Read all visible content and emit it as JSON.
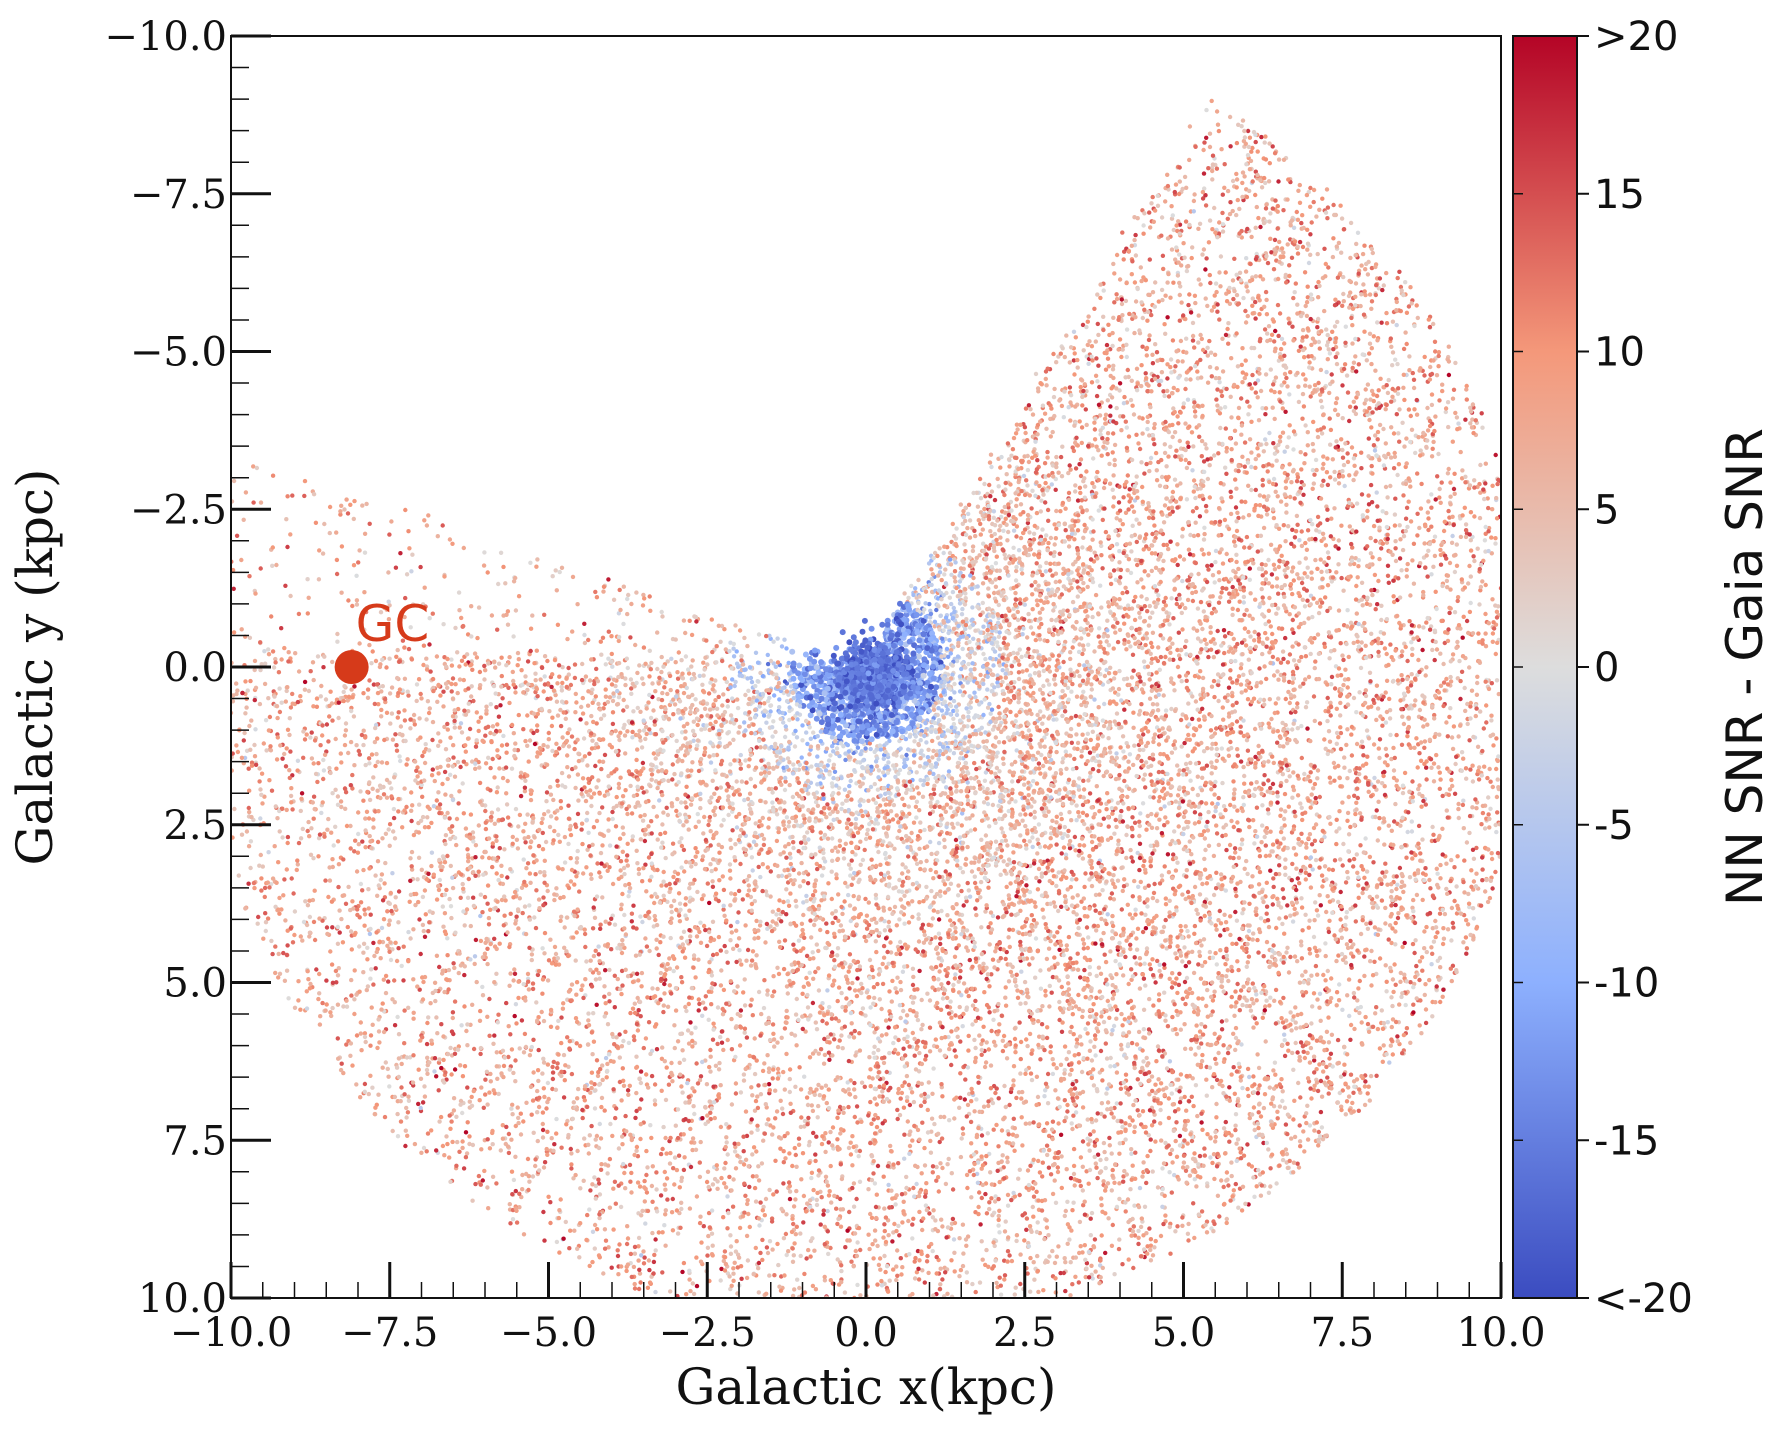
{
  "chart_data": {
    "type": "scatter",
    "xlabel": "Galactic x(kpc)",
    "ylabel": "Galactic y (kpc)",
    "xlim": [
      -10.0,
      10.0
    ],
    "ylim": [
      -10.0,
      10.0
    ],
    "y_inverted": true,
    "x_ticks": [
      "−10.0",
      "−7.5",
      "−5.0",
      "−2.5",
      "0.0",
      "2.5",
      "5.0",
      "7.5",
      "10.0"
    ],
    "y_ticks": [
      "−10.0",
      "−7.5",
      "−5.0",
      "−2.5",
      "0.0",
      "2.5",
      "5.0",
      "7.5",
      "10.0"
    ],
    "x_tick_values": [
      -10,
      -7.5,
      -5,
      -2.5,
      0,
      2.5,
      5,
      7.5,
      10
    ],
    "y_tick_values": [
      -10,
      -7.5,
      -5,
      -2.5,
      0,
      2.5,
      5,
      7.5,
      10
    ],
    "grid": false,
    "colorbar": {
      "label": "NN SNR - Gaia SNR",
      "range": [
        -20,
        20
      ],
      "tick_values": [
        20,
        15,
        10,
        5,
        0,
        -5,
        -10,
        -15,
        -20
      ],
      "tick_labels": [
        ">20",
        "15",
        "10",
        "5",
        "0",
        "-5",
        "-10",
        "-15",
        "<-20"
      ],
      "colormap": "coolwarm",
      "colors": [
        "#3b4cc0",
        "#dddddd",
        "#b40426"
      ]
    },
    "annotation": {
      "text": "GC",
      "x": -8.1,
      "y": 0.0,
      "color": "#d63a1a"
    },
    "point_distribution": {
      "description": "Radial spoke pattern of stars centred near (0,0); negative residuals (blue) within ~1.5 kpc, positive residuals (red) at larger distances",
      "center": [
        0.0,
        0.0
      ],
      "max_radius_kpc": 10.5
    }
  }
}
